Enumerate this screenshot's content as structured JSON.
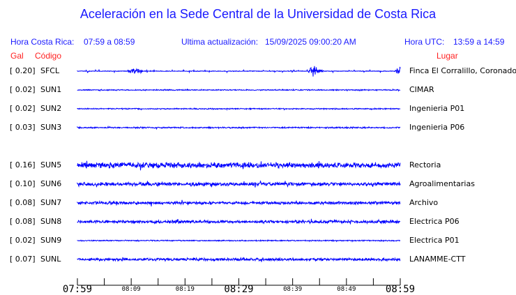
{
  "title": "Aceleración en la Sede Central de la Universidad de Costa Rica",
  "header": {
    "local_label": "Hora Costa Rica:",
    "local_range": "07:59 a 08:59",
    "update_label": "Ultima actualización:",
    "update_value": "15/09/2025 09:00:20 AM",
    "utc_label": "Hora UTC:",
    "utc_range": "13:59 a 14:59"
  },
  "columns": {
    "gal": "Gal",
    "code": "Código",
    "place": "Lugar"
  },
  "trace_color": "#0000ff",
  "chart_data": {
    "type": "line",
    "xlabel": "",
    "ylabel": "",
    "x_ticks": [
      "07:59",
      "08:09",
      "08:19",
      "08:29",
      "08:39",
      "08:49",
      "08:59"
    ],
    "stations": [
      {
        "gal": "[   0.20]",
        "code": "SFCL",
        "place": "Finca El Corralillo, Coronado",
        "peak_gal": 0.2
      },
      {
        "gal": "[   0.02]",
        "code": "SUN1",
        "place": "CIMAR",
        "peak_gal": 0.02
      },
      {
        "gal": "[   0.02]",
        "code": "SUN2",
        "place": "Ingenieria P01",
        "peak_gal": 0.02
      },
      {
        "gal": "[   0.03]",
        "code": "SUN3",
        "place": "Ingenieria P06",
        "peak_gal": 0.03
      },
      {
        "gal": "[   0.16]",
        "code": "SUN5",
        "place": "Rectoria",
        "peak_gal": 0.16
      },
      {
        "gal": "[   0.10]",
        "code": "SUN6",
        "place": "Agroalimentarias",
        "peak_gal": 0.1
      },
      {
        "gal": "[   0.08]",
        "code": "SUN7",
        "place": "Archivo",
        "peak_gal": 0.08
      },
      {
        "gal": "[   0.08]",
        "code": "SUN8",
        "place": "Electrica P06",
        "peak_gal": 0.08
      },
      {
        "gal": "[   0.02]",
        "code": "SUN9",
        "place": "Electrica P01",
        "peak_gal": 0.02
      },
      {
        "gal": "[   0.07]",
        "code": "SUNL",
        "place": "LANAMME-CTT",
        "peak_gal": 0.07
      }
    ]
  }
}
